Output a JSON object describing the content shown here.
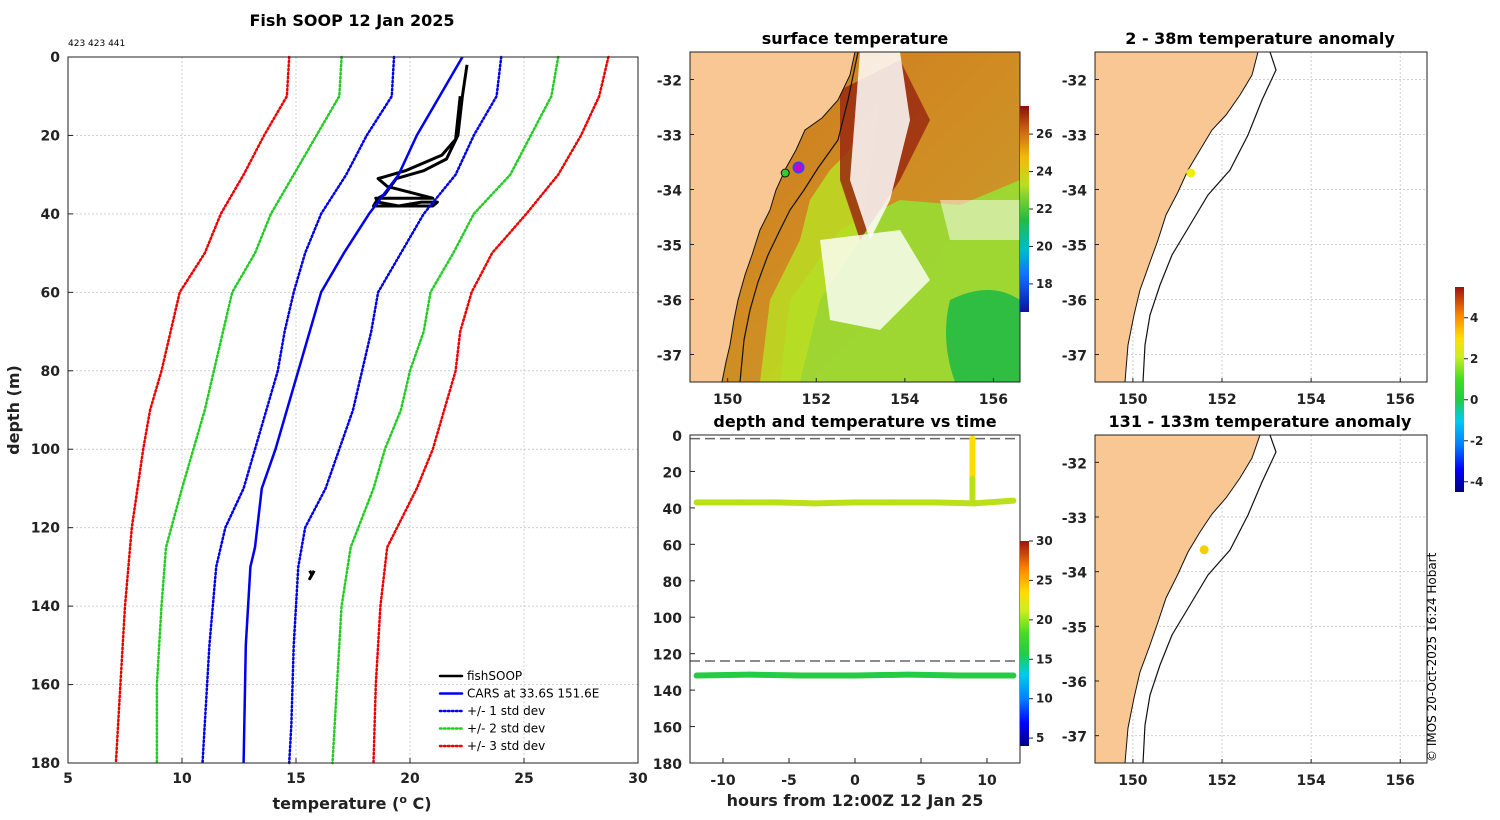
{
  "chart_data": [
    {
      "type": "line",
      "title": "Fish SOOP 12 Jan 2025",
      "subtitle": "423 423 441",
      "xlabel": "temperature (°C)",
      "ylabel": "depth (m)",
      "xlim": [
        5,
        30
      ],
      "ylim": [
        0,
        180
      ],
      "y_reversed": true,
      "xticks": [
        5,
        10,
        15,
        20,
        25,
        30
      ],
      "yticks": [
        0,
        20,
        40,
        60,
        80,
        100,
        120,
        140,
        160,
        180
      ],
      "legend_position": "bottom-right",
      "series": [
        {
          "name": "fishSOOP",
          "color": "#000000",
          "style": "solid",
          "x": [
            22.5,
            22.3,
            22.1,
            21.6,
            20.6,
            19.4,
            18.9,
            18.6,
            18.4,
            19.5,
            20.5,
            21.2,
            21.0,
            19.5,
            18.6,
            18.5,
            21.0,
            19.0,
            18.6,
            19.8,
            21.4,
            22.0,
            22.2
          ],
          "y": [
            2,
            10,
            20,
            26,
            29,
            31,
            35,
            36,
            38,
            38,
            37,
            37,
            38,
            38,
            37,
            36,
            36,
            33,
            31,
            29,
            25,
            21,
            10
          ]
        },
        {
          "name": "fishSOOP-deep",
          "color": "#000000",
          "style": "solid",
          "x": [
            15.6,
            15.7,
            15.6,
            15.8
          ],
          "y": [
            131,
            132,
            133,
            131
          ]
        },
        {
          "name": "CARS at 33.6S 151.6E",
          "color": "#0000ee",
          "style": "solid",
          "x": [
            22.3,
            21.3,
            20.3,
            19.5,
            18.2,
            17.1,
            16.1,
            15.6,
            15.1,
            14.6,
            14.1,
            13.5,
            13.2,
            13.0,
            12.8,
            12.7
          ],
          "y": [
            0,
            10,
            20,
            30,
            40,
            50,
            60,
            70,
            80,
            90,
            100,
            110,
            125,
            130,
            150,
            180
          ]
        },
        {
          "name": "+/- 1 std dev",
          "color": "#0000ee",
          "style": "dotted",
          "x": [
            19.3,
            19.2,
            18.1,
            17.2,
            16.1,
            15.4,
            14.9,
            14.5,
            14.2,
            13.7,
            13.2,
            12.7,
            11.9,
            11.5,
            11.2,
            11.0,
            10.9
          ],
          "y": [
            0,
            10,
            20,
            30,
            40,
            50,
            60,
            70,
            80,
            90,
            100,
            110,
            120,
            130,
            150,
            170,
            180
          ]
        },
        {
          "name": "+/- 1 std dev upper",
          "color": "#0000ee",
          "style": "dotted",
          "x": [
            24.0,
            23.8,
            22.8,
            22.0,
            20.6,
            19.6,
            18.6,
            18.3,
            17.9,
            17.5,
            16.9,
            16.3,
            15.4,
            15.1,
            14.9,
            14.8,
            14.7
          ],
          "y": [
            0,
            10,
            20,
            30,
            40,
            50,
            60,
            70,
            80,
            90,
            100,
            110,
            120,
            130,
            150,
            170,
            180
          ]
        },
        {
          "name": "+/- 2 std dev",
          "color": "#22cc22",
          "style": "dotted",
          "x": [
            17.0,
            16.9,
            15.9,
            14.9,
            13.9,
            13.2,
            12.2,
            11.8,
            11.4,
            11.0,
            10.5,
            10.0,
            9.3,
            9.1,
            8.9,
            8.9
          ],
          "y": [
            0,
            10,
            20,
            30,
            40,
            50,
            60,
            70,
            80,
            90,
            100,
            110,
            125,
            140,
            160,
            180
          ]
        },
        {
          "name": "+/- 2 std dev upper",
          "color": "#22cc22",
          "style": "dotted",
          "x": [
            26.5,
            26.2,
            25.3,
            24.4,
            22.8,
            21.9,
            20.9,
            20.6,
            20.0,
            19.6,
            18.9,
            18.4,
            17.4,
            17.0,
            16.8,
            16.6
          ],
          "y": [
            0,
            10,
            20,
            30,
            40,
            50,
            60,
            70,
            80,
            90,
            100,
            110,
            125,
            140,
            160,
            180
          ]
        },
        {
          "name": "+/- 3 std dev",
          "color": "#ee0000",
          "style": "dotted",
          "x": [
            14.7,
            14.6,
            13.6,
            12.7,
            11.7,
            11.0,
            9.9,
            9.5,
            9.1,
            8.6,
            8.3,
            7.8,
            7.5,
            7.3,
            7.1
          ],
          "y": [
            0,
            10,
            20,
            30,
            40,
            50,
            60,
            70,
            80,
            90,
            100,
            120,
            140,
            160,
            180
          ]
        },
        {
          "name": "+/- 3 std dev upper",
          "color": "#ee0000",
          "style": "dotted",
          "x": [
            28.7,
            28.3,
            27.5,
            26.5,
            25.1,
            23.6,
            22.7,
            22.2,
            22.0,
            21.5,
            21.0,
            20.3,
            19.0,
            18.7,
            18.5,
            18.4
          ],
          "y": [
            0,
            10,
            20,
            30,
            40,
            50,
            60,
            70,
            80,
            90,
            100,
            110,
            125,
            140,
            160,
            180
          ]
        }
      ],
      "legend": [
        "fishSOOP",
        "CARS at 33.6S 151.6E",
        "+/- 1 std dev",
        "+/- 2 std dev",
        "+/- 3 std dev"
      ]
    },
    {
      "type": "heatmap",
      "title": "surface temperature",
      "xticks": [
        150,
        152,
        154,
        156
      ],
      "yticks": [
        -32,
        -33,
        -34,
        -35,
        -36,
        -37
      ],
      "colorbar_ticks": [
        18,
        20,
        22,
        24,
        26
      ],
      "colorbar_range": [
        16.5,
        27.5
      ],
      "markers": [
        {
          "lon": 151.6,
          "lat": -33.6,
          "color": "#cc00cc"
        },
        {
          "lon": 151.3,
          "lat": -33.7,
          "color": "#33cc33"
        }
      ]
    },
    {
      "type": "heatmap",
      "title": "2 - 38m temperature anomaly",
      "xticks": [
        150,
        152,
        154,
        156
      ],
      "yticks": [
        -32,
        -33,
        -34,
        -35,
        -36,
        -37
      ],
      "markers": [
        {
          "lon": 151.3,
          "lat": -33.7,
          "color": "#f0ee10"
        }
      ]
    },
    {
      "type": "scatter",
      "title": "depth and temperature vs time",
      "xlabel": "hours from 12:00Z 12 Jan 25",
      "xlim": [
        -12.5,
        12.5
      ],
      "ylim": [
        0,
        180
      ],
      "y_reversed": true,
      "xticks": [
        -10,
        -5,
        0,
        5,
        10
      ],
      "yticks": [
        0,
        20,
        40,
        60,
        80,
        100,
        120,
        140,
        160,
        180
      ],
      "reference_lines": [
        2,
        124
      ],
      "colorbar_ticks": [
        5,
        10,
        15,
        20,
        25,
        30
      ],
      "colorbar_range": [
        4,
        30
      ],
      "series": [
        {
          "name": "shallow",
          "hours": [
            -12,
            -9,
            -6,
            -3,
            0,
            3,
            6,
            9,
            12
          ],
          "depth": [
            37,
            37,
            37,
            37.5,
            37,
            37,
            37,
            37.5,
            36
          ],
          "temp": [
            21.5,
            21.8,
            22.2,
            22.0,
            21.8,
            21.6,
            22.0,
            21.7,
            19.5
          ]
        },
        {
          "name": "profile",
          "hours": [
            8.9,
            8.9,
            8.9,
            8.9
          ],
          "depth": [
            2,
            12,
            24,
            36
          ],
          "temp": [
            24.5,
            23.5,
            23.0,
            22.0
          ]
        },
        {
          "name": "deep",
          "hours": [
            -12,
            -8,
            -4,
            0,
            4,
            8,
            12
          ],
          "depth": [
            132,
            131.5,
            132,
            132,
            131.5,
            132,
            132
          ],
          "temp": [
            17,
            17,
            17,
            17,
            17,
            17,
            17
          ]
        }
      ]
    },
    {
      "type": "heatmap",
      "title": "131 - 133m temperature anomaly",
      "xticks": [
        150,
        152,
        154,
        156
      ],
      "yticks": [
        -32,
        -33,
        -34,
        -35,
        -36,
        -37
      ],
      "colorbar_ticks": [
        -4,
        -2,
        0,
        2,
        4
      ],
      "colorbar_range": [
        -4.5,
        5.5
      ],
      "markers": [
        {
          "lon": 151.6,
          "lat": -33.6,
          "color": "#f4d000"
        }
      ]
    }
  ],
  "credit": "© IMOS 20-Oct-2025 16:24 Hobart"
}
